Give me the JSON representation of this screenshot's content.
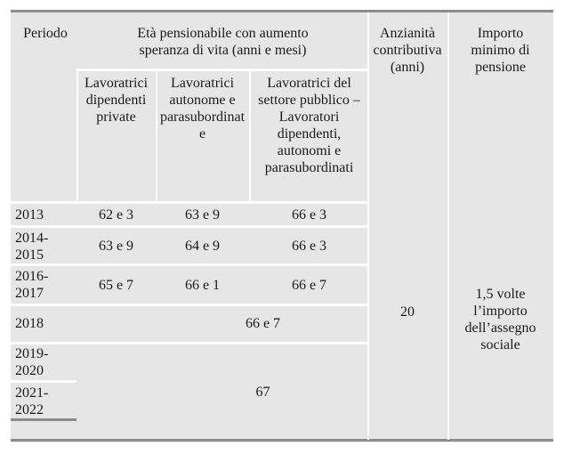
{
  "header": {
    "periodo": "Periodo",
    "eta_line1": "Età pensionabile con aumento",
    "eta_line2": "speranza di vita (anni e mesi)",
    "anzianita": [
      "Anzianità",
      "contributiva",
      "(anni)"
    ],
    "importo": [
      "Importo",
      "minimo di",
      "pensione"
    ],
    "sub_private": [
      "Lavoratrici",
      "dipendenti",
      "private"
    ],
    "sub_autonome": [
      "Lavoratrici",
      "autonome e",
      "parasubordinat",
      "e"
    ],
    "sub_pubblico": [
      "Lavoratrici del",
      "settore pubblico –",
      "Lavoratori",
      "dipendenti,",
      "autonomi e",
      "parasubordinati"
    ]
  },
  "rows": [
    {
      "periodo": [
        "2013"
      ],
      "private": "62 e 3",
      "autonome": "63 e 9",
      "pubblico": "66 e 3"
    },
    {
      "periodo": [
        "2014-",
        "2015"
      ],
      "private": "63 e 9",
      "autonome": "64 e 9",
      "pubblico": "66 e 3"
    },
    {
      "periodo": [
        "2016-",
        "2017"
      ],
      "private": "65 e 7",
      "autonome": "66 e 1",
      "pubblico": "66 e 7"
    },
    {
      "periodo": [
        "2018"
      ],
      "merged": "66 e 7"
    },
    {
      "periodo": [
        "2019-",
        "2020"
      ]
    },
    {
      "periodo": [
        "2021-",
        "2022"
      ],
      "merged": "67"
    }
  ],
  "anzianita_value": "20",
  "importo_value": [
    "1,5 volte",
    "l’importo",
    "dell’assegno",
    "sociale"
  ]
}
